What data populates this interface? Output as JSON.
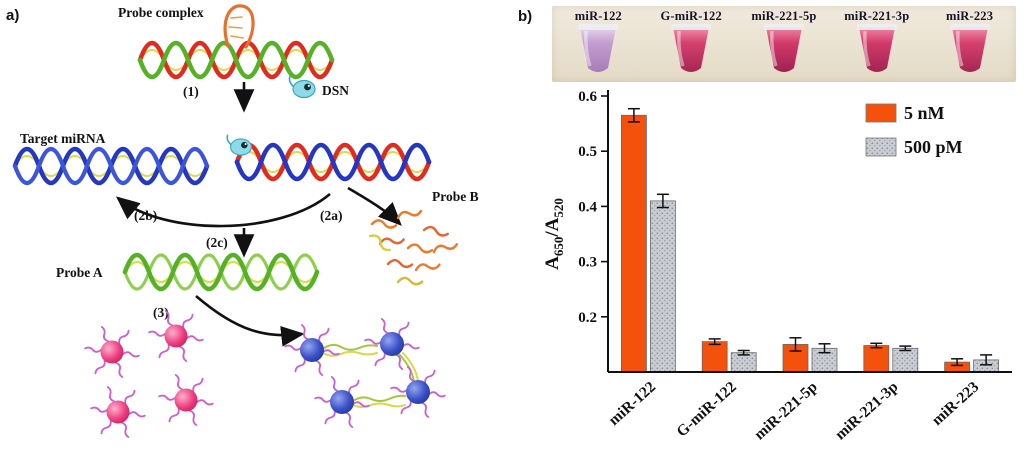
{
  "panel_a": {
    "label": "a)",
    "labels": {
      "probe_complex": "Probe complex",
      "step_1": "(1)",
      "dsn": "DSN",
      "target_mirna": "Target miRNA",
      "probe_b": "Probe B",
      "step_2a": "(2a)",
      "step_2b": "(2b)",
      "step_2c": "(2c)",
      "probe_a": "Probe A",
      "step_3": "(3)"
    },
    "colors": {
      "strand_red": "#e02b20",
      "strand_green": "#55b224",
      "strand_blue": "#2336c4",
      "strand_yellow": "#d8dc50",
      "dsn_enzyme": "#8edbe8",
      "fragment_orange": "#ee7a28",
      "nanoparticle_pink": "#ee3f80",
      "nanoparticle_blue": "#3a50c8",
      "ligand_purple": "#c95fd2"
    }
  },
  "panel_b": {
    "label": "b)",
    "tubes": [
      {
        "label": "miR-122",
        "top": "#e7d8ea",
        "main": "#c49ed0",
        "dark": "#a87cb8"
      },
      {
        "label": "G-miR-122",
        "top": "#ef93ac",
        "main": "#d6416f",
        "dark": "#a62553"
      },
      {
        "label": "miR-221-5p",
        "top": "#ee8aa6",
        "main": "#d23a6b",
        "dark": "#9e2150"
      },
      {
        "label": "miR-221-3p",
        "top": "#ee8aa6",
        "main": "#d23a6b",
        "dark": "#a02452"
      },
      {
        "label": "miR-223",
        "top": "#ef93ac",
        "main": "#d6416f",
        "dark": "#a62553"
      }
    ]
  },
  "chart_data": {
    "type": "bar",
    "categories": [
      "miR-122",
      "G-miR-122",
      "miR-221-5p",
      "miR-221-3p",
      "miR-223"
    ],
    "series": [
      {
        "name": "5 nM",
        "color": "#f4510c",
        "pattern": "solid",
        "values": [
          0.565,
          0.155,
          0.15,
          0.148,
          0.118
        ],
        "errors": [
          0.012,
          0.005,
          0.012,
          0.004,
          0.006
        ]
      },
      {
        "name": "500 pM",
        "color": "#c9ccd2",
        "pattern": "stipple",
        "values": [
          0.41,
          0.135,
          0.143,
          0.143,
          0.122
        ],
        "errors": [
          0.012,
          0.004,
          0.008,
          0.004,
          0.009
        ]
      }
    ],
    "ylabel": "A650/A520",
    "ylabel_parts": {
      "base1": "A",
      "sub1": "650",
      "mid": "/A",
      "sub2": "520"
    },
    "ylim": [
      0.1,
      0.6
    ],
    "yticks": [
      0.2,
      0.3,
      0.4,
      0.5,
      0.6
    ],
    "legend_position": "top-right",
    "grid": false
  }
}
